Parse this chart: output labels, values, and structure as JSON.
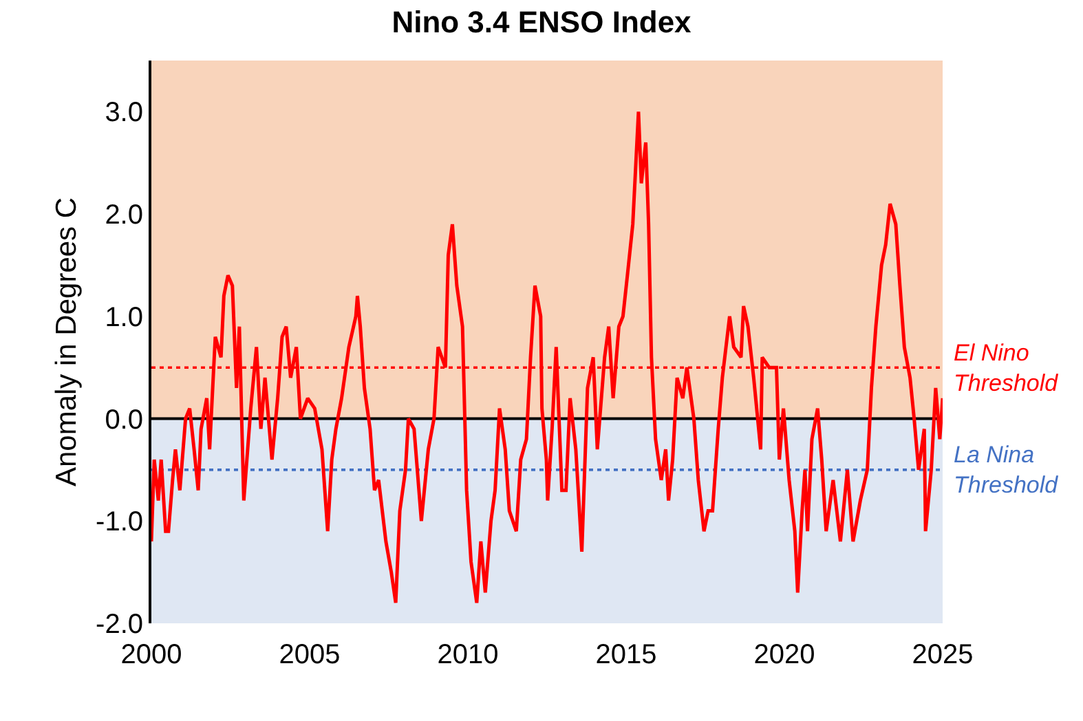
{
  "chart_data": {
    "type": "line",
    "title": "Nino 3.4 ENSO Index",
    "ylabel": "Anomaly in Degrees C",
    "xlim": [
      2000,
      2025
    ],
    "xticks": [
      2000,
      2005,
      2010,
      2015,
      2020,
      2025
    ],
    "ylim": [
      -2,
      3.5
    ],
    "yticks": [
      {
        "value": -2,
        "label": "-2.0"
      },
      {
        "value": -1,
        "label": "-1.0"
      },
      {
        "value": 0,
        "label": "0.0"
      },
      {
        "value": 1,
        "label": "1.0"
      },
      {
        "value": 2,
        "label": "2.0"
      },
      {
        "value": 3,
        "label": "3.0"
      }
    ],
    "grid": false,
    "marker": "none",
    "line_style": "solid",
    "bands": [
      {
        "axis": "y",
        "from": 0,
        "to": 3.5,
        "color": "#f4b183"
      },
      {
        "axis": "y",
        "from": -2,
        "to": 0,
        "color": "#c5d3ea"
      }
    ],
    "ref_lines": [
      {
        "axis": "y",
        "value": 0,
        "color": "#000000",
        "line_style": "solid"
      },
      {
        "axis": "y",
        "value": 0.5,
        "label": "El Nino\nThreshold",
        "color": "#ff0000",
        "line_style": "dotted"
      },
      {
        "axis": "y",
        "value": -0.5,
        "label": "La Nina\nThreshold",
        "color": "#4472c4",
        "line_style": "dotted"
      }
    ],
    "series": [
      {
        "color": "#ff0000",
        "x": [
          2000.0,
          2000.09,
          2000.22,
          2000.31,
          2000.45,
          2000.54,
          2000.67,
          2000.76,
          2000.9,
          2001.08,
          2001.21,
          2001.35,
          2001.48,
          2001.57,
          2001.75,
          2001.84,
          2001.97,
          2002.02,
          2002.2,
          2002.29,
          2002.42,
          2002.56,
          2002.69,
          2002.78,
          2002.87,
          2002.92,
          2003.14,
          2003.32,
          2003.46,
          2003.59,
          2003.81,
          2003.99,
          2004.13,
          2004.26,
          2004.4,
          2004.58,
          2004.71,
          2004.94,
          2005.16,
          2005.39,
          2005.57,
          2005.7,
          2005.83,
          2006.01,
          2006.24,
          2006.46,
          2006.51,
          2006.6,
          2006.73,
          2006.91,
          2007.05,
          2007.18,
          2007.41,
          2007.58,
          2007.72,
          2007.85,
          2008.03,
          2008.12,
          2008.3,
          2008.53,
          2008.75,
          2008.93,
          2009.06,
          2009.29,
          2009.38,
          2009.51,
          2009.65,
          2009.83,
          2009.96,
          2010.1,
          2010.28,
          2010.41,
          2010.55,
          2010.73,
          2010.86,
          2011.0,
          2011.18,
          2011.31,
          2011.53,
          2011.67,
          2011.85,
          2011.98,
          2012.12,
          2012.3,
          2012.34,
          2012.48,
          2012.52,
          2012.66,
          2012.79,
          2012.97,
          2013.1,
          2013.23,
          2013.41,
          2013.6,
          2013.78,
          2013.96,
          2014.09,
          2014.32,
          2014.45,
          2014.59,
          2014.77,
          2014.9,
          2015.04,
          2015.21,
          2015.39,
          2015.48,
          2015.62,
          2015.71,
          2015.8,
          2015.93,
          2016.11,
          2016.25,
          2016.34,
          2016.47,
          2016.61,
          2016.79,
          2016.92,
          2017.14,
          2017.28,
          2017.46,
          2017.59,
          2017.73,
          2017.91,
          2018.04,
          2018.27,
          2018.4,
          2018.63,
          2018.71,
          2018.85,
          2019.03,
          2019.25,
          2019.3,
          2019.52,
          2019.75,
          2019.84,
          2019.97,
          2020.15,
          2020.33,
          2020.42,
          2020.56,
          2020.65,
          2020.73,
          2020.87,
          2021.05,
          2021.18,
          2021.32,
          2021.54,
          2021.77,
          2021.99,
          2022.17,
          2022.4,
          2022.62,
          2022.75,
          2022.89,
          2023.07,
          2023.2,
          2023.34,
          2023.52,
          2023.65,
          2023.79,
          2023.97,
          2024.1,
          2024.24,
          2024.42,
          2024.46,
          2024.64,
          2024.78,
          2024.91,
          2025.0
        ],
        "values": [
          -1.2,
          -0.4,
          -0.8,
          -0.4,
          -1.1,
          -1.1,
          -0.6,
          -0.3,
          -0.7,
          0.0,
          0.1,
          -0.3,
          -0.7,
          -0.1,
          0.2,
          -0.3,
          0.5,
          0.8,
          0.6,
          1.2,
          1.4,
          1.3,
          0.3,
          0.9,
          -0.2,
          -0.8,
          0.1,
          0.7,
          -0.1,
          0.4,
          -0.4,
          0.2,
          0.8,
          0.9,
          0.4,
          0.7,
          0.0,
          0.2,
          0.1,
          -0.3,
          -1.1,
          -0.4,
          -0.1,
          0.2,
          0.7,
          1.0,
          1.2,
          0.9,
          0.3,
          -0.1,
          -0.7,
          -0.6,
          -1.2,
          -1.5,
          -1.8,
          -0.9,
          -0.5,
          0.0,
          -0.1,
          -1.0,
          -0.3,
          0.0,
          0.7,
          0.5,
          1.6,
          1.9,
          1.3,
          0.9,
          -0.7,
          -1.4,
          -1.8,
          -1.2,
          -1.7,
          -1.0,
          -0.7,
          0.1,
          -0.3,
          -0.9,
          -1.1,
          -0.4,
          -0.2,
          0.6,
          1.3,
          1.0,
          0.1,
          -0.4,
          -0.8,
          -0.1,
          0.7,
          -0.7,
          -0.7,
          0.2,
          -0.3,
          -1.3,
          0.3,
          0.6,
          -0.3,
          0.6,
          0.9,
          0.2,
          0.9,
          1.0,
          1.4,
          1.9,
          3.0,
          2.3,
          2.7,
          1.9,
          0.6,
          -0.2,
          -0.6,
          -0.3,
          -0.8,
          -0.4,
          0.4,
          0.2,
          0.5,
          0.0,
          -0.6,
          -1.1,
          -0.9,
          -0.9,
          -0.1,
          0.4,
          1.0,
          0.7,
          0.6,
          1.1,
          0.9,
          0.4,
          -0.3,
          0.6,
          0.5,
          0.5,
          -0.4,
          0.1,
          -0.6,
          -1.1,
          -1.7,
          -0.9,
          -0.5,
          -1.1,
          -0.2,
          0.1,
          -0.4,
          -1.1,
          -0.6,
          -1.2,
          -0.5,
          -1.2,
          -0.8,
          -0.5,
          0.3,
          0.9,
          1.5,
          1.7,
          2.1,
          1.9,
          1.3,
          0.7,
          0.4,
          0.0,
          -0.5,
          -0.1,
          -1.1,
          -0.5,
          0.3,
          -0.2,
          0.2
        ]
      }
    ]
  }
}
